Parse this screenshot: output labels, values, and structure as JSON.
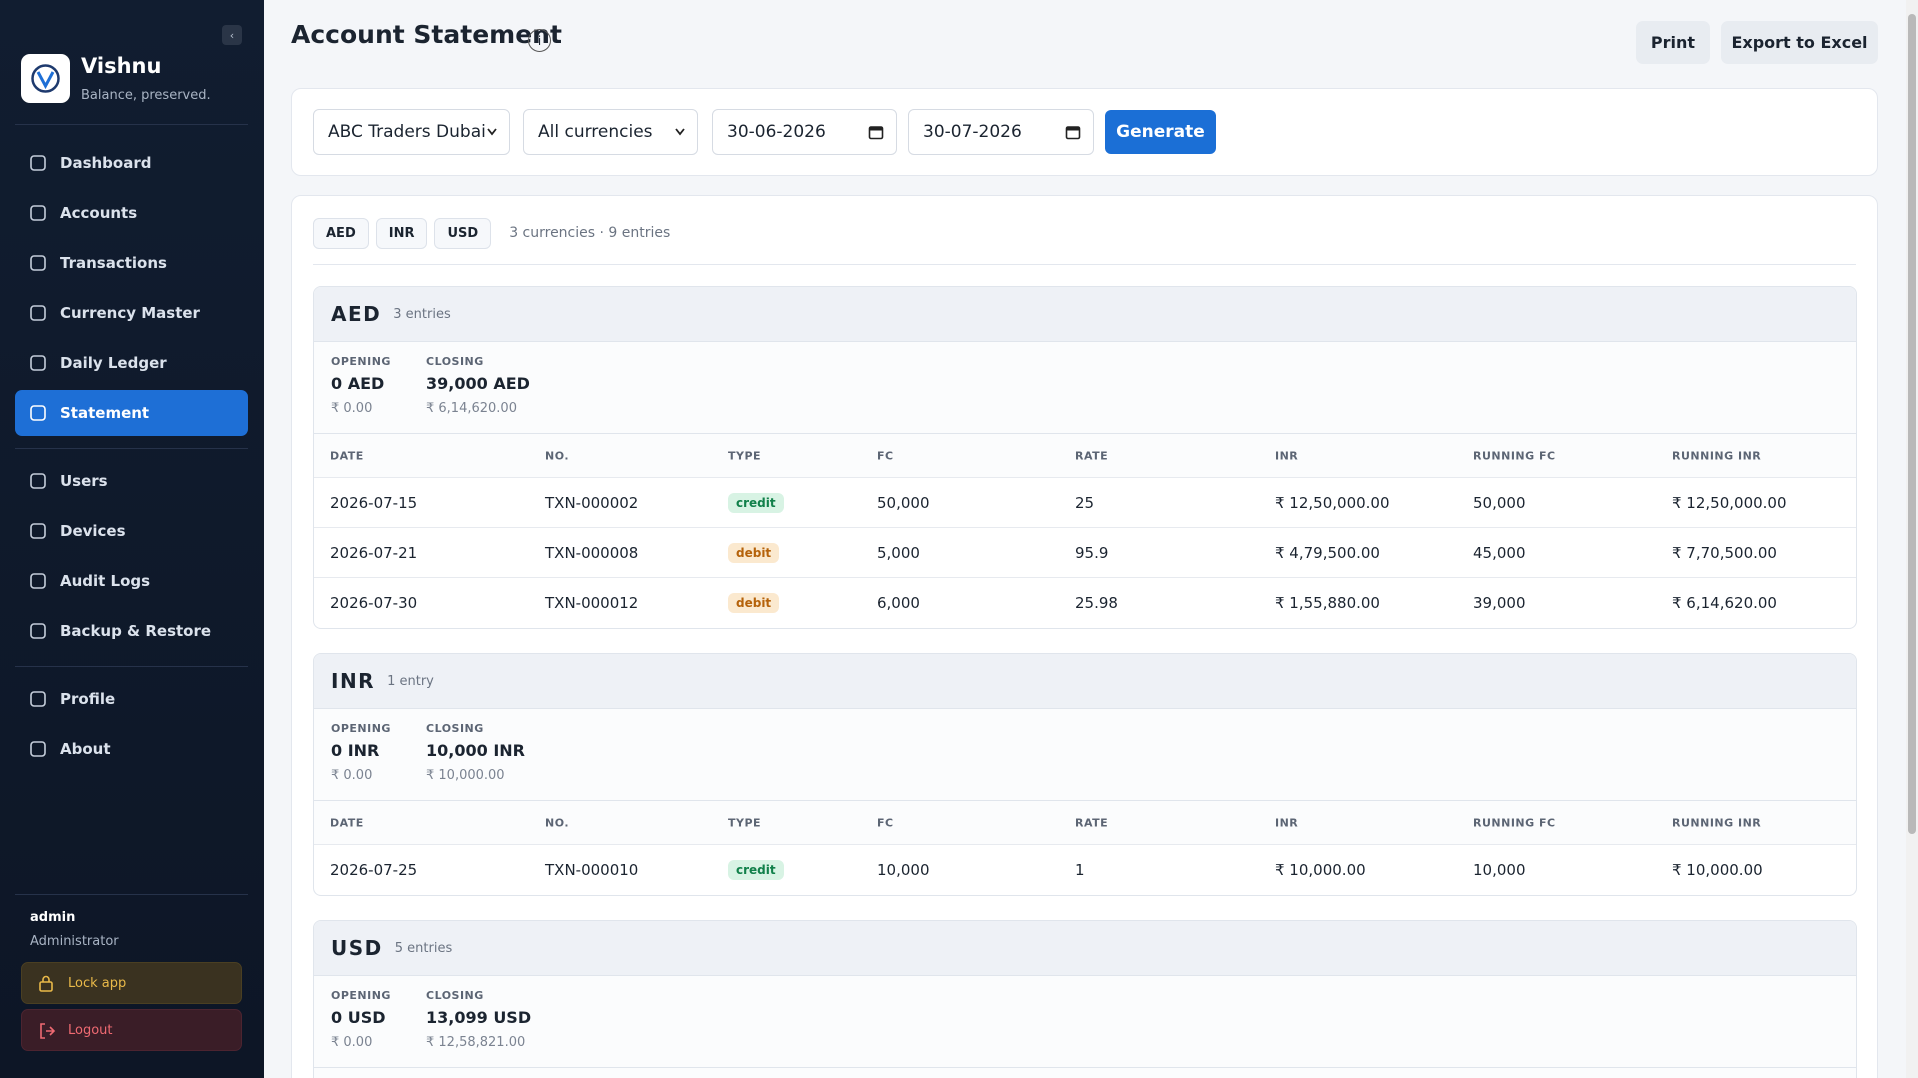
{
  "sidebar": {
    "brand": "Vishnu",
    "tagline": "Balance, preserved.",
    "nav_groups": [
      [
        "Dashboard",
        "Accounts",
        "Transactions",
        "Currency Master",
        "Daily Ledger",
        "Statement"
      ],
      [
        "Users",
        "Devices",
        "Audit Logs",
        "Backup & Restore"
      ],
      [
        "Profile",
        "About"
      ]
    ],
    "active": "Statement",
    "user": "admin",
    "role": "Administrator",
    "lock": "Lock app",
    "logout": "Logout"
  },
  "header": {
    "title": "Account Statement",
    "info": "i",
    "buttons": [
      "Print",
      "Export to Excel"
    ]
  },
  "filters": {
    "account": "ABC Traders Dubai",
    "currency": "All currencies",
    "from": "30-06-2026",
    "to": "30-07-2026",
    "generate": "Generate"
  },
  "summary": {
    "chips": [
      "AED",
      "INR",
      "USD"
    ],
    "text": "3 currencies · 9 entries"
  },
  "table": {
    "opening_label": "OPENING",
    "closing_label": "CLOSING",
    "columns": [
      "DATE",
      "NO.",
      "TYPE",
      "FC",
      "RATE",
      "INR",
      "RUNNING FC",
      "RUNNING INR"
    ],
    "badge_colors": {
      "credit": {
        "bg": "#d8f3e4",
        "fg": "#11804a"
      },
      "debit": {
        "bg": "#fbe9cf",
        "fg": "#b5620a"
      }
    }
  },
  "sections": [
    {
      "code": "AED",
      "count": "3 entries",
      "opening": "0 AED",
      "opening_inr": "₹ 0.00",
      "closing": "39,000 AED",
      "closing_inr": "₹ 6,14,620.00",
      "rows": [
        [
          "2026-07-15",
          "TXN-000002",
          "credit",
          "50,000",
          "25",
          "₹ 12,50,000.00",
          "50,000",
          "₹ 12,50,000.00"
        ],
        [
          "2026-07-21",
          "TXN-000008",
          "debit",
          "5,000",
          "95.9",
          "₹ 4,79,500.00",
          "45,000",
          "₹ 7,70,500.00"
        ],
        [
          "2026-07-30",
          "TXN-000012",
          "debit",
          "6,000",
          "25.98",
          "₹ 1,55,880.00",
          "39,000",
          "₹ 6,14,620.00"
        ]
      ]
    },
    {
      "code": "INR",
      "count": "1 entry",
      "opening": "0 INR",
      "opening_inr": "₹ 0.00",
      "closing": "10,000 INR",
      "closing_inr": "₹ 10,000.00",
      "rows": [
        [
          "2026-07-25",
          "TXN-000010",
          "credit",
          "10,000",
          "1",
          "₹ 10,000.00",
          "10,000",
          "₹ 10,000.00"
        ]
      ]
    },
    {
      "code": "USD",
      "count": "5 entries",
      "opening": "0 USD",
      "opening_inr": "₹ 0.00",
      "closing": "13,099 USD",
      "closing_inr": "₹ 12,58,821.00",
      "rows": []
    }
  ]
}
